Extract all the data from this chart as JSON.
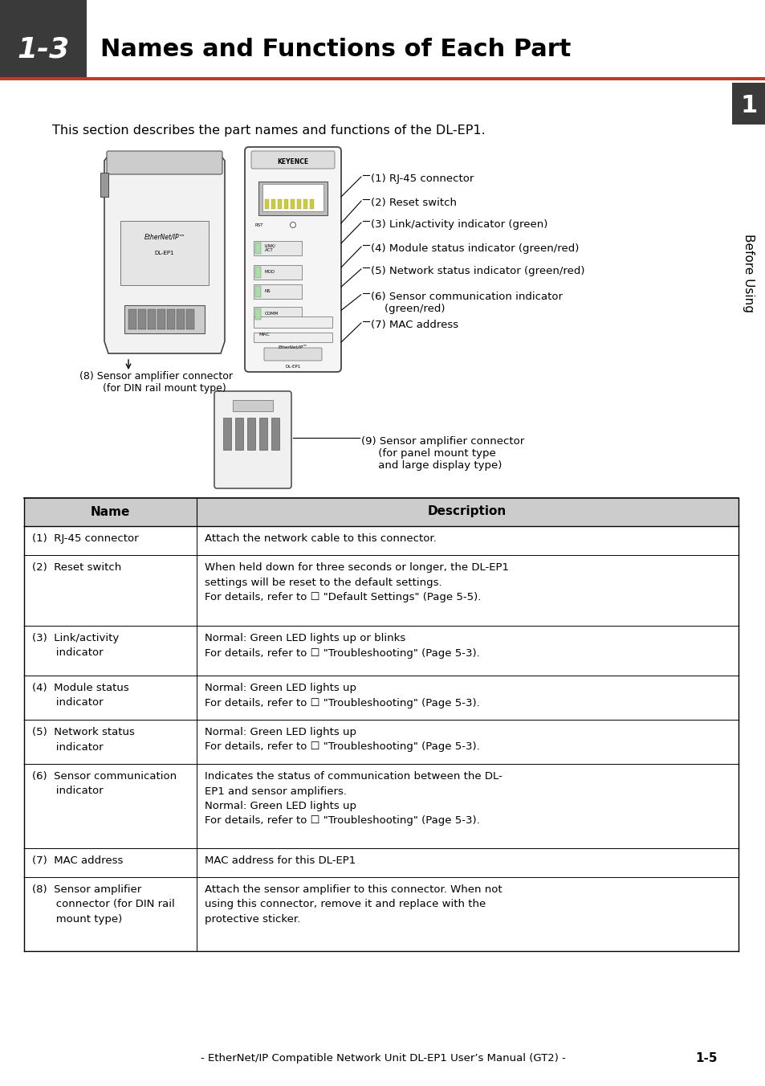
{
  "title_box_color": "#3a3a3a",
  "title_number": "1-3",
  "title_text": "Names and Functions of Each Part",
  "title_underline_color": "#c0392b",
  "intro_text": "This section describes the part names and functions of the DL-EP1.",
  "sidebar_color": "#3a3a3a",
  "sidebar_text": "Before Using",
  "sidebar_number": "1",
  "sidebar_num_box_color": "#3a3a3a",
  "table_header_bg": "#cccccc",
  "table_col1_header": "Name",
  "table_col2_header": "Description",
  "table_rows": [
    {
      "name": "(1)  RJ-45 connector",
      "desc": "Attach the network cable to this connector."
    },
    {
      "name": "(2)  Reset switch",
      "desc": "When held down for three seconds or longer, the DL-EP1\nsettings will be reset to the default settings.\nFor details, refer to ☐ \"Default Settings\" (Page 5-5)."
    },
    {
      "name": "(3)  Link/activity\n       indicator",
      "desc": "Normal: Green LED lights up or blinks\nFor details, refer to ☐ \"Troubleshooting\" (Page 5-3)."
    },
    {
      "name": "(4)  Module status\n       indicator",
      "desc": "Normal: Green LED lights up\nFor details, refer to ☐ \"Troubleshooting\" (Page 5-3)."
    },
    {
      "name": "(5)  Network status\n       indicator",
      "desc": "Normal: Green LED lights up\nFor details, refer to ☐ \"Troubleshooting\" (Page 5-3)."
    },
    {
      "name": "(6)  Sensor communication\n       indicator",
      "desc": "Indicates the status of communication between the DL-\nEP1 and sensor amplifiers.\nNormal: Green LED lights up\nFor details, refer to ☐ \"Troubleshooting\" (Page 5-3)."
    },
    {
      "name": "(7)  MAC address",
      "desc": "MAC address for this DL-EP1"
    },
    {
      "name": "(8)  Sensor amplifier\n       connector (for DIN rail\n       mount type)",
      "desc": "Attach the sensor amplifier to this connector. When not\nusing this connector, remove it and replace with the\nprotective sticker."
    }
  ],
  "footer_text": "- EtherNet/IP Compatible Network Unit DL-EP1 User’s Manual (GT2) -",
  "footer_page": "1-5"
}
